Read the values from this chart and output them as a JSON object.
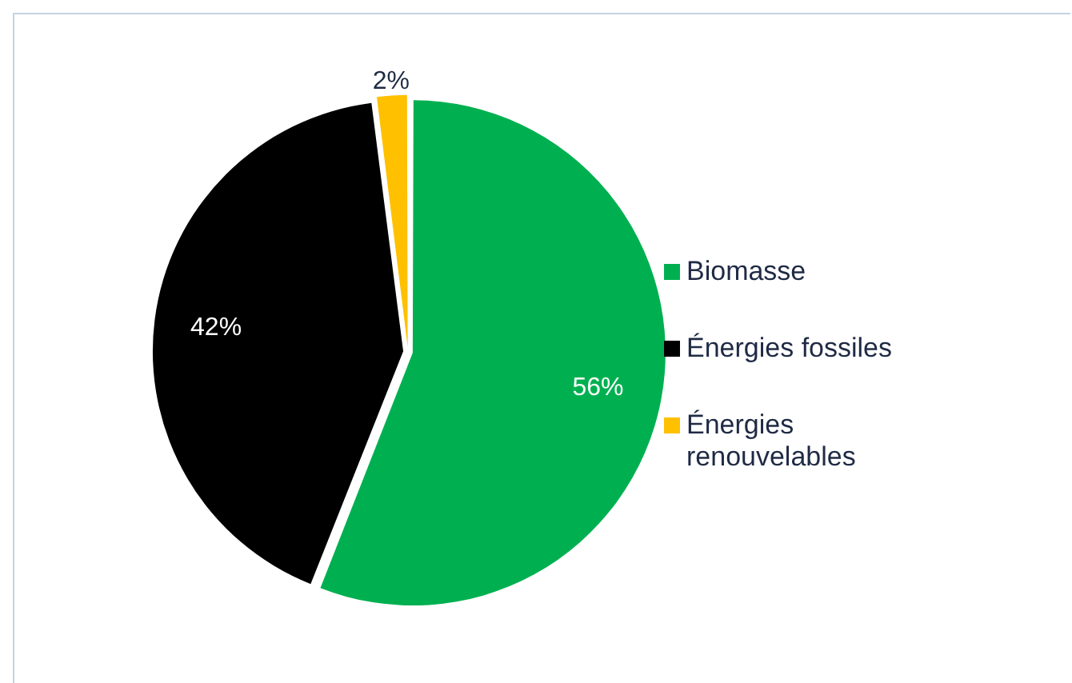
{
  "chart_data": {
    "type": "pie",
    "categories": [
      "Biomasse",
      "Énergies fossiles",
      "Énergies renouvelables"
    ],
    "values": [
      56,
      42,
      2
    ],
    "colors": [
      "#00b050",
      "#000000",
      "#ffc000"
    ],
    "value_labels": [
      "56%",
      "42%",
      "2%"
    ],
    "legend": "right"
  }
}
